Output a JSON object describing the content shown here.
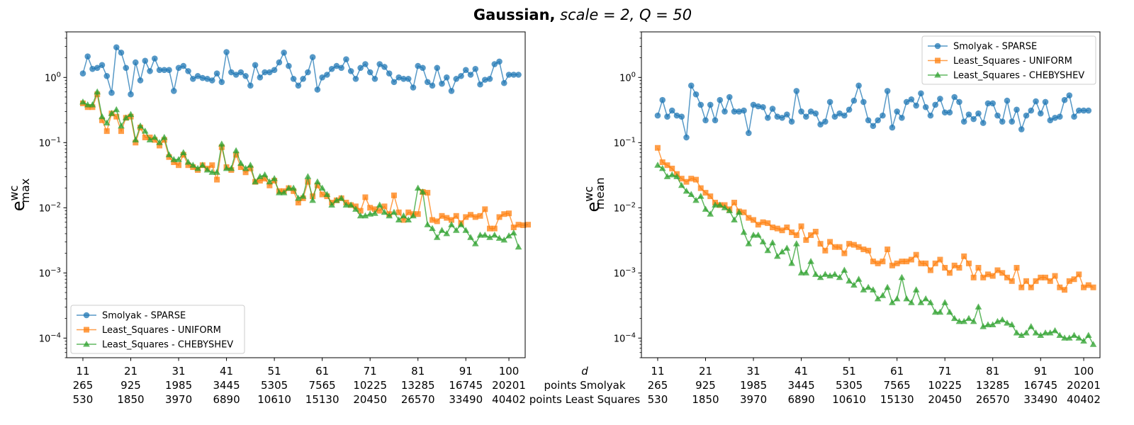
{
  "figure": {
    "title_bold": "Gaussian,",
    "title_rest": " scale = 2, Q = 50",
    "row_labels": [
      "d",
      "points Smolyak",
      "points Least Squares"
    ]
  },
  "legend_labels": [
    "Smolyak - SPARSE",
    "Least_Squares - UNIFORM",
    "Least_Squares - CHEBYSHEV"
  ],
  "colors": {
    "smolyak": "#1f77b4",
    "uniform": "#ff7f0e",
    "chebyshev": "#2ca02c"
  },
  "chart_data": [
    {
      "type": "line",
      "ylabel_main": "e",
      "ylabel_sup": "wc",
      "ylabel_sub": "max",
      "yscale": "log",
      "ylim": [
        5e-05,
        5
      ],
      "xlim": [
        7.6,
        103.4
      ],
      "grid": false,
      "legend": "lower-left",
      "x_ticks": [
        11,
        21,
        31,
        41,
        51,
        61,
        71,
        81,
        91,
        100
      ],
      "x_tick_labels": [
        [
          "11",
          "265",
          "530"
        ],
        [
          "21",
          "925",
          "1850"
        ],
        [
          "31",
          "1985",
          "3970"
        ],
        [
          "41",
          "3445",
          "6890"
        ],
        [
          "51",
          "5305",
          "10610"
        ],
        [
          "61",
          "7565",
          "15130"
        ],
        [
          "71",
          "10225",
          "20450"
        ],
        [
          "81",
          "13285",
          "26570"
        ],
        [
          "91",
          "16745",
          "33490"
        ],
        [
          "100",
          "20201",
          "40402"
        ]
      ],
      "y_ticks": [
        "10^-4",
        "10^-3",
        "10^-2",
        "10^-1",
        "10^0"
      ],
      "series": [
        {
          "name": "Smolyak - SPARSE",
          "key": "smolyak",
          "marker": "circle",
          "start": 11,
          "values": [
            1.15,
            2.1,
            1.35,
            1.4,
            1.55,
            1.05,
            0.58,
            2.9,
            2.4,
            1.4,
            0.55,
            1.7,
            0.9,
            1.8,
            1.25,
            1.95,
            1.3,
            1.3,
            1.3,
            0.62,
            1.4,
            1.5,
            1.25,
            0.95,
            1.05,
            0.98,
            0.95,
            0.9,
            1.15,
            0.85,
            2.45,
            1.2,
            1.1,
            1.2,
            1.05,
            0.75,
            1.55,
            1.0,
            1.2,
            1.2,
            1.3,
            1.7,
            2.4,
            1.5,
            0.95,
            0.75,
            0.95,
            1.2,
            2.05,
            0.65,
            1.0,
            1.1,
            1.35,
            1.5,
            1.4,
            1.9,
            1.25,
            0.95,
            1.4,
            1.6,
            1.2,
            0.95,
            1.6,
            1.45,
            1.15,
            0.85,
            1.0,
            0.95,
            0.95,
            0.7,
            1.5,
            1.4,
            0.85,
            0.75,
            1.4,
            0.8,
            1.0,
            0.62,
            0.95,
            1.05,
            1.3,
            1.1,
            1.35,
            0.78,
            0.92,
            0.95,
            1.6,
            1.75,
            0.82,
            1.1,
            1.1,
            1.1
          ]
        },
        {
          "name": "Least_Squares - UNIFORM",
          "key": "uniform",
          "marker": "square",
          "start": 11,
          "values": [
            0.4,
            0.35,
            0.35,
            0.55,
            0.22,
            0.15,
            0.28,
            0.25,
            0.15,
            0.24,
            0.25,
            0.1,
            0.17,
            0.12,
            0.12,
            0.11,
            0.09,
            0.11,
            0.06,
            0.05,
            0.045,
            0.065,
            0.045,
            0.042,
            0.038,
            0.045,
            0.04,
            0.045,
            0.027,
            0.085,
            0.042,
            0.038,
            0.065,
            0.042,
            0.035,
            0.04,
            0.025,
            0.026,
            0.028,
            0.022,
            0.026,
            0.018,
            0.018,
            0.02,
            0.018,
            0.012,
            0.014,
            0.025,
            0.015,
            0.022,
            0.016,
            0.015,
            0.012,
            0.013,
            0.014,
            0.012,
            0.011,
            0.0105,
            0.009,
            0.0145,
            0.01,
            0.0095,
            0.009,
            0.0105,
            0.008,
            0.0155,
            0.0085,
            0.0065,
            0.0085,
            0.008,
            0.008,
            0.0175,
            0.017,
            0.0065,
            0.0062,
            0.0075,
            0.007,
            0.0065,
            0.0075,
            0.0058,
            0.0072,
            0.0078,
            0.0072,
            0.0075,
            0.0095,
            0.0048,
            0.0048,
            0.0072,
            0.008,
            0.0082,
            0.005,
            0.0055,
            0.0054,
            0.0055
          ]
        },
        {
          "name": "Least_Squares - CHEBYSHEV",
          "key": "chebyshev",
          "marker": "triangle",
          "start": 11,
          "values": [
            0.42,
            0.38,
            0.38,
            0.6,
            0.25,
            0.2,
            0.28,
            0.32,
            0.18,
            0.24,
            0.27,
            0.11,
            0.18,
            0.15,
            0.11,
            0.12,
            0.1,
            0.12,
            0.065,
            0.055,
            0.055,
            0.07,
            0.05,
            0.045,
            0.04,
            0.045,
            0.038,
            0.035,
            0.035,
            0.095,
            0.04,
            0.04,
            0.075,
            0.048,
            0.04,
            0.045,
            0.025,
            0.03,
            0.032,
            0.025,
            0.028,
            0.017,
            0.017,
            0.02,
            0.02,
            0.014,
            0.015,
            0.03,
            0.013,
            0.025,
            0.02,
            0.016,
            0.011,
            0.013,
            0.014,
            0.011,
            0.011,
            0.0095,
            0.0075,
            0.0075,
            0.008,
            0.0082,
            0.011,
            0.0085,
            0.0075,
            0.0085,
            0.0065,
            0.0075,
            0.0065,
            0.0075,
            0.02,
            0.0175,
            0.0055,
            0.0048,
            0.0035,
            0.0045,
            0.004,
            0.0055,
            0.0045,
            0.0055,
            0.0045,
            0.0035,
            0.0028,
            0.0038,
            0.0038,
            0.0035,
            0.0038,
            0.0034,
            0.0032,
            0.0037,
            0.0041,
            0.0025
          ]
        }
      ]
    },
    {
      "type": "line",
      "ylabel_main": "e",
      "ylabel_sup": "wc",
      "ylabel_sub": "mean",
      "yscale": "log",
      "ylim": [
        5e-05,
        5
      ],
      "xlim": [
        7.6,
        103.4
      ],
      "grid": false,
      "legend": "upper-right",
      "x_ticks": [
        11,
        21,
        31,
        41,
        51,
        61,
        71,
        81,
        91,
        100
      ],
      "x_tick_labels": [
        [
          "11",
          "265",
          "530"
        ],
        [
          "21",
          "925",
          "1850"
        ],
        [
          "31",
          "1985",
          "3970"
        ],
        [
          "41",
          "3445",
          "6890"
        ],
        [
          "51",
          "5305",
          "10610"
        ],
        [
          "61",
          "7565",
          "15130"
        ],
        [
          "71",
          "10225",
          "20450"
        ],
        [
          "81",
          "13285",
          "26570"
        ],
        [
          "91",
          "16745",
          "33490"
        ],
        [
          "100",
          "20201",
          "40402"
        ]
      ],
      "y_ticks": [
        "10^-4",
        "10^-3",
        "10^-2",
        "10^-1",
        "10^0"
      ],
      "series": [
        {
          "name": "Smolyak - SPARSE",
          "key": "smolyak",
          "marker": "circle",
          "start": 11,
          "values": [
            0.26,
            0.45,
            0.25,
            0.31,
            0.26,
            0.25,
            0.12,
            0.75,
            0.55,
            0.38,
            0.22,
            0.38,
            0.22,
            0.45,
            0.3,
            0.5,
            0.3,
            0.3,
            0.31,
            0.14,
            0.38,
            0.36,
            0.35,
            0.24,
            0.33,
            0.25,
            0.24,
            0.27,
            0.21,
            0.62,
            0.3,
            0.25,
            0.3,
            0.28,
            0.19,
            0.21,
            0.42,
            0.25,
            0.28,
            0.26,
            0.32,
            0.44,
            0.75,
            0.42,
            0.22,
            0.18,
            0.22,
            0.26,
            0.62,
            0.17,
            0.3,
            0.24,
            0.42,
            0.46,
            0.37,
            0.57,
            0.35,
            0.26,
            0.38,
            0.47,
            0.29,
            0.29,
            0.5,
            0.42,
            0.21,
            0.27,
            0.23,
            0.28,
            0.2,
            0.4,
            0.4,
            0.26,
            0.21,
            0.44,
            0.21,
            0.32,
            0.16,
            0.26,
            0.31,
            0.43,
            0.28,
            0.42,
            0.22,
            0.24,
            0.25,
            0.45,
            0.53,
            0.25,
            0.31,
            0.31,
            0.31
          ]
        },
        {
          "name": "Least_Squares - UNIFORM",
          "key": "uniform",
          "marker": "square",
          "start": 11,
          "values": [
            0.083,
            0.05,
            0.045,
            0.04,
            0.033,
            0.028,
            0.025,
            0.028,
            0.027,
            0.02,
            0.017,
            0.015,
            0.012,
            0.011,
            0.011,
            0.0095,
            0.012,
            0.0088,
            0.0085,
            0.007,
            0.0065,
            0.0055,
            0.006,
            0.0058,
            0.005,
            0.0048,
            0.0045,
            0.005,
            0.0042,
            0.0038,
            0.0052,
            0.0032,
            0.0038,
            0.0043,
            0.0028,
            0.0022,
            0.003,
            0.0025,
            0.0025,
            0.002,
            0.0028,
            0.0027,
            0.0025,
            0.0023,
            0.0022,
            0.0015,
            0.0014,
            0.0015,
            0.0023,
            0.0013,
            0.0014,
            0.0015,
            0.0015,
            0.0016,
            0.0019,
            0.0014,
            0.0014,
            0.0011,
            0.0014,
            0.0016,
            0.0012,
            0.001,
            0.0013,
            0.0012,
            0.0018,
            0.0014,
            0.00085,
            0.0012,
            0.00085,
            0.00095,
            0.0009,
            0.0011,
            0.001,
            0.00085,
            0.00075,
            0.0012,
            0.0006,
            0.00075,
            0.0006,
            0.00075,
            0.00085,
            0.00085,
            0.00075,
            0.0009,
            0.0006,
            0.00055,
            0.00075,
            0.0008,
            0.00095,
            0.0006,
            0.00065,
            0.0006
          ]
        },
        {
          "name": "Least_Squares - CHEBYSHEV",
          "key": "chebyshev",
          "marker": "triangle",
          "start": 11,
          "values": [
            0.045,
            0.04,
            0.03,
            0.032,
            0.03,
            0.022,
            0.018,
            0.016,
            0.013,
            0.015,
            0.0095,
            0.008,
            0.011,
            0.011,
            0.01,
            0.009,
            0.0065,
            0.0085,
            0.0042,
            0.0028,
            0.0038,
            0.0038,
            0.003,
            0.0022,
            0.0029,
            0.0018,
            0.0021,
            0.0024,
            0.0014,
            0.0028,
            0.001,
            0.001,
            0.0015,
            0.00095,
            0.00085,
            0.00095,
            0.0009,
            0.00095,
            0.00085,
            0.0011,
            0.00075,
            0.00065,
            0.0008,
            0.00055,
            0.0006,
            0.00055,
            0.0004,
            0.00045,
            0.0006,
            0.00035,
            0.0004,
            0.00085,
            0.0004,
            0.00035,
            0.00055,
            0.00035,
            0.0004,
            0.00035,
            0.00025,
            0.00025,
            0.00035,
            0.00025,
            0.0002,
            0.00018,
            0.00018,
            0.0002,
            0.00018,
            0.0003,
            0.00015,
            0.00016,
            0.00016,
            0.00018,
            0.00019,
            0.00017,
            0.00016,
            0.00012,
            0.00011,
            0.00012,
            0.00015,
            0.00012,
            0.00011,
            0.00012,
            0.00012,
            0.00013,
            0.00011,
            0.0001,
            0.0001,
            0.00011,
            0.0001,
            9e-05,
            0.00011,
            8e-05
          ]
        }
      ]
    }
  ]
}
